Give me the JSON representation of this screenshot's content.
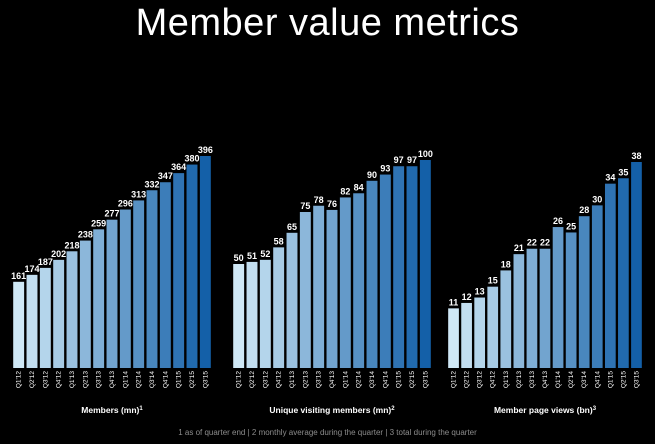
{
  "title": "Member value metrics",
  "footnote": "1 as of quarter end | 2 monthly average during the quarter | 3 total during the quarter",
  "colors": {
    "background": "#000000",
    "bar_light": "#cfe8f6",
    "bar_dark": "#1a5aa3",
    "bar_dark_alt": "#1466a8",
    "text": "#ffffff"
  },
  "chart_data": [
    {
      "type": "bar",
      "title": "",
      "xlabel": "Members (mn)",
      "xlabel_sup": "1",
      "ylabel": "",
      "categories": [
        "Q1'12",
        "Q2'12",
        "Q3'12",
        "Q4'12",
        "Q1'13",
        "Q2'13",
        "Q3'13",
        "Q4'13",
        "Q1'14",
        "Q2'14",
        "Q3'14",
        "Q4'14",
        "Q1'15",
        "Q2'15",
        "Q3'15"
      ],
      "values": [
        161,
        174,
        187,
        202,
        218,
        238,
        259,
        277,
        296,
        313,
        332,
        347,
        364,
        380,
        396
      ],
      "ylim": [
        0,
        396
      ],
      "grid": false,
      "legend": "none"
    },
    {
      "type": "bar",
      "title": "",
      "xlabel": "Unique visiting members (mn)",
      "xlabel_sup": "2",
      "ylabel": "",
      "categories": [
        "Q1'12",
        "Q2'12",
        "Q3'12",
        "Q4'12",
        "Q1'13",
        "Q2'13",
        "Q3'13",
        "Q4'13",
        "Q1'14",
        "Q2'14",
        "Q3'14",
        "Q4'14",
        "Q1'15",
        "Q2'15",
        "Q3'15"
      ],
      "values": [
        50,
        51,
        52,
        58,
        65,
        75,
        78,
        76,
        82,
        84,
        90,
        93,
        97,
        97,
        100
      ],
      "ylim": [
        0,
        100
      ],
      "grid": false,
      "legend": "none"
    },
    {
      "type": "bar",
      "title": "",
      "xlabel": "Member page views (bn)",
      "xlabel_sup": "3",
      "ylabel": "",
      "categories": [
        "Q1'12",
        "Q2'12",
        "Q3'12",
        "Q4'12",
        "Q1'13",
        "Q2'13",
        "Q3'13",
        "Q4'13",
        "Q1'14",
        "Q2'14",
        "Q3'14",
        "Q4'14",
        "Q1'15",
        "Q2'15",
        "Q3'15"
      ],
      "values": [
        11,
        12,
        13,
        15,
        18,
        21,
        22,
        22,
        26,
        25,
        28,
        30,
        34,
        35,
        38
      ],
      "ylim": [
        0,
        38
      ],
      "grid": false,
      "legend": "none"
    }
  ]
}
